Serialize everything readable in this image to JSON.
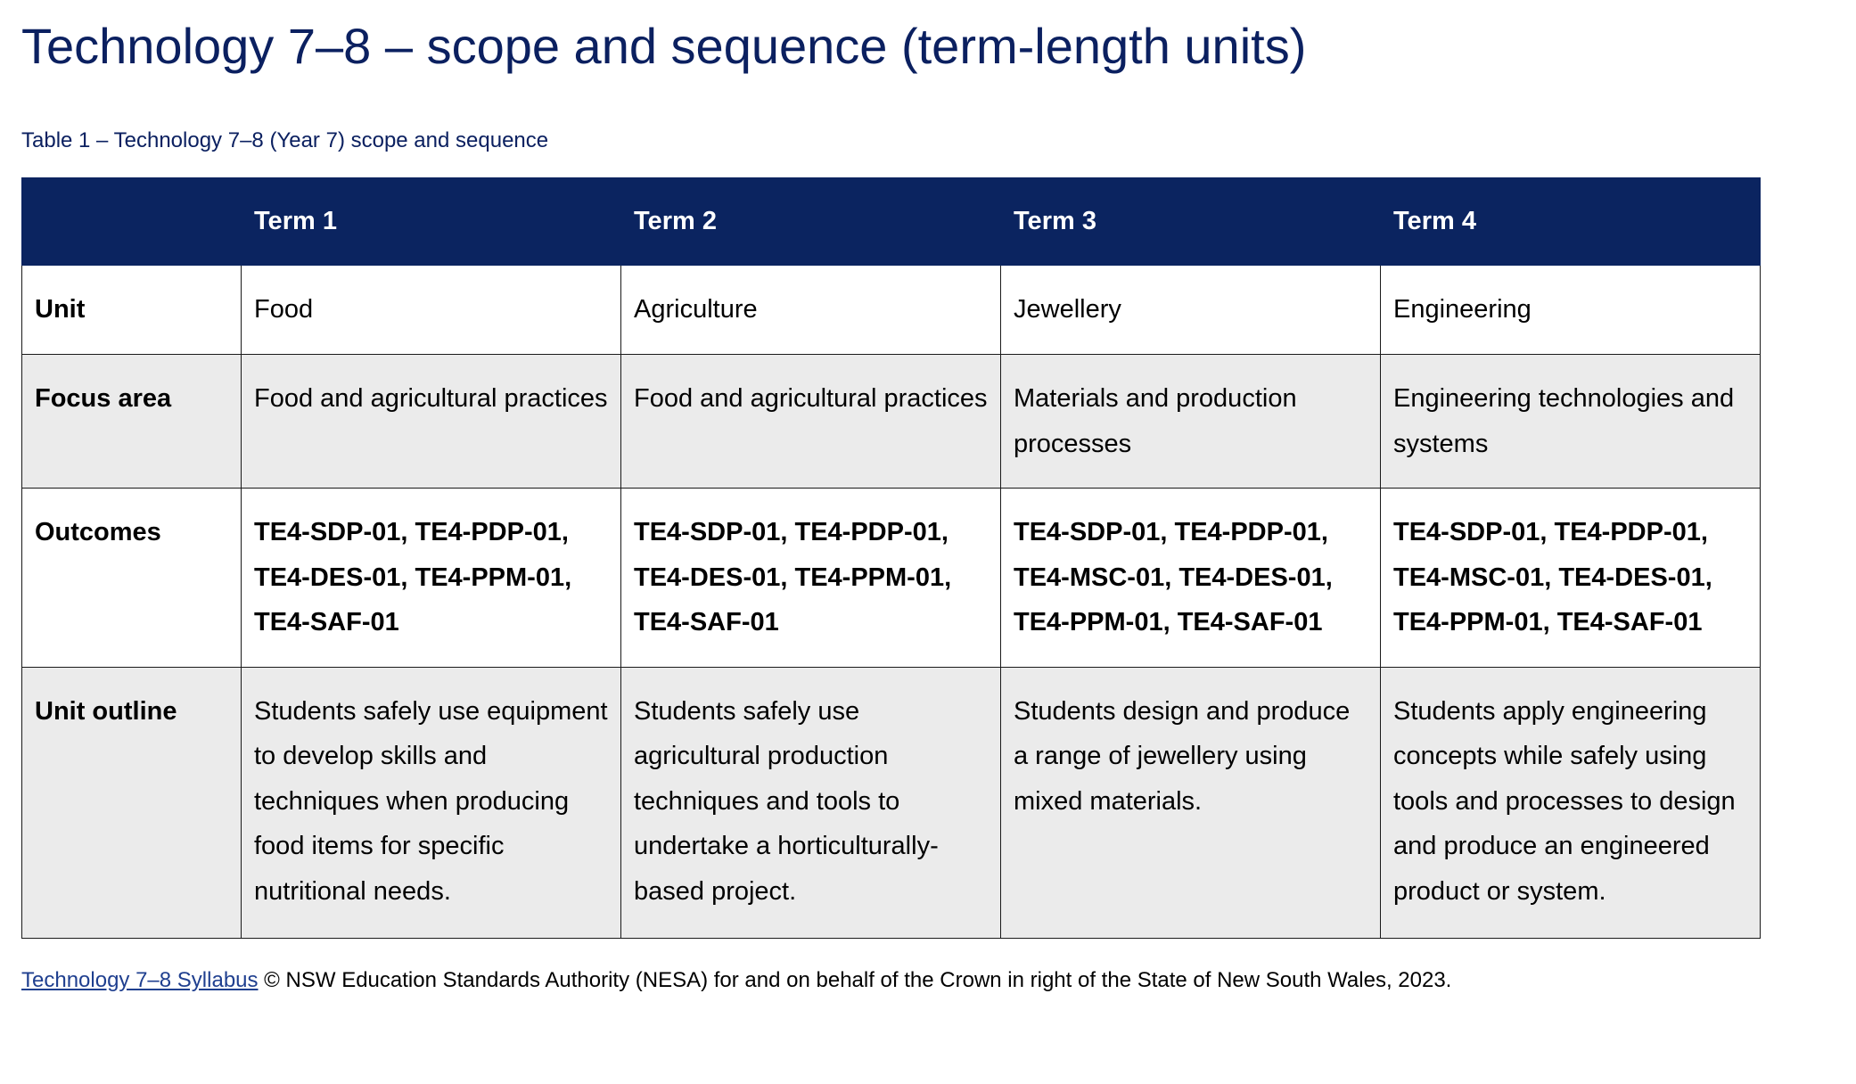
{
  "document": {
    "title": "Technology 7–8 – scope and sequence (term-length units)",
    "caption": "Table 1 – Technology 7–8 (Year 7) scope and sequence",
    "colors": {
      "header_background": "#0b2460",
      "title_text": "#0b2060",
      "grey_row": "#ebebeb",
      "link": "#1f3f8f"
    }
  },
  "table": {
    "header": {
      "corner": "",
      "terms": [
        "Term 1",
        "Term 2",
        "Term 3",
        "Term 4"
      ]
    },
    "rows": [
      {
        "label": "Unit",
        "cells": [
          "Food",
          "Agriculture",
          "Jewellery",
          "Engineering"
        ]
      },
      {
        "label": "Focus area",
        "cells": [
          "Food and agricultural practices",
          "Food and agricultural practices",
          "Materials and production processes",
          "Engineering technologies and systems"
        ]
      },
      {
        "label": "Outcomes",
        "cells": [
          "TE4-SDP-01, TE4-PDP-01, TE4-DES-01, TE4-PPM-01, TE4-SAF-01",
          "TE4-SDP-01, TE4-PDP-01, TE4-DES-01, TE4-PPM-01, TE4-SAF-01",
          "TE4-SDP-01, TE4-PDP-01, TE4-MSC-01, TE4-DES-01, TE4-PPM-01, TE4-SAF-01",
          "TE4-SDP-01, TE4-PDP-01, TE4-MSC-01, TE4-DES-01, TE4-PPM-01, TE4-SAF-01"
        ]
      },
      {
        "label": "Unit outline",
        "cells": [
          "Students safely use equipment to develop skills and techniques when producing food items for specific nutritional needs.",
          "Students safely use agricultural production techniques and tools to undertake a horticulturally-based project.",
          "Students design and produce a range of jewellery using mixed materials.",
          "Students apply engineering concepts while safely using tools and processes to design and produce an engineered product or system."
        ]
      }
    ]
  },
  "footer": {
    "link_text": "Technology 7–8 Syllabus",
    "text": " © NSW Education Standards Authority (NESA) for and on behalf of the Crown in right of the State of New South Wales, 2023."
  }
}
